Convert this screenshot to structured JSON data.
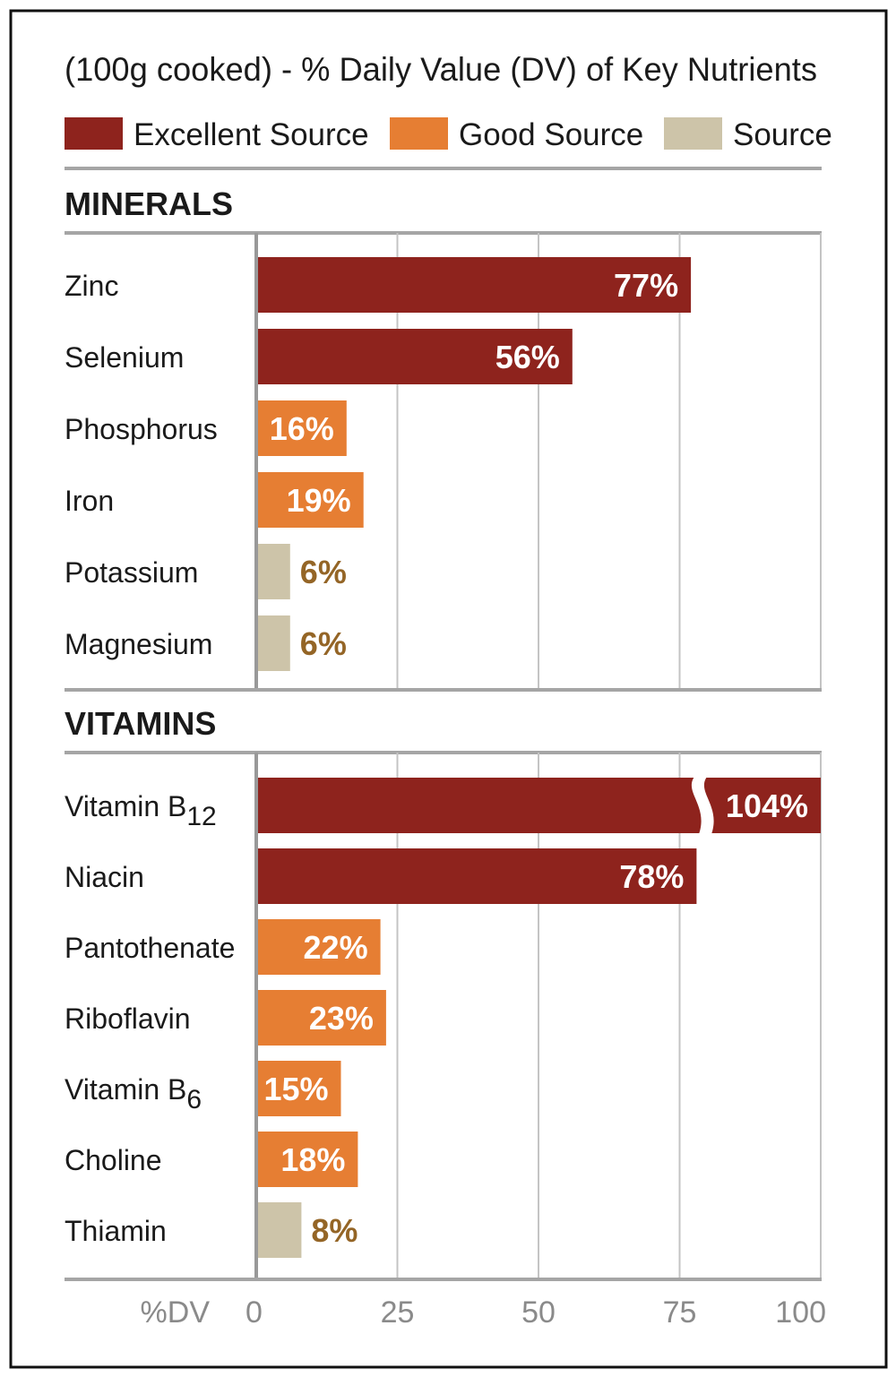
{
  "chart_data": {
    "type": "bar",
    "orientation": "horizontal",
    "title": "(100g cooked) - % Daily Value (DV) of Key Nutrients",
    "xlabel": "%DV",
    "xlim": [
      0,
      100
    ],
    "xticks": [
      "0",
      "25",
      "50",
      "75",
      "100"
    ],
    "grid": true,
    "legend_placement": "top",
    "legend": [
      {
        "key": "excellent",
        "label": "Excellent Source",
        "color": "#8E231D"
      },
      {
        "key": "good",
        "label": "Good Source",
        "color": "#E67E33"
      },
      {
        "key": "source",
        "label": "Source",
        "color": "#CDC4A9"
      }
    ],
    "source_value_color": "#946526",
    "sections": [
      {
        "name": "MINERALS",
        "items": [
          {
            "label": "Zinc",
            "sub": "",
            "value": 77,
            "display": "77%",
            "category": "excellent"
          },
          {
            "label": "Selenium",
            "sub": "",
            "value": 56,
            "display": "56%",
            "category": "excellent"
          },
          {
            "label": "Phosphorus",
            "sub": "",
            "value": 16,
            "display": "16%",
            "category": "good"
          },
          {
            "label": "Iron",
            "sub": "",
            "value": 19,
            "display": "19%",
            "category": "good"
          },
          {
            "label": "Potassium",
            "sub": "",
            "value": 6,
            "display": "6%",
            "category": "source"
          },
          {
            "label": "Magnesium",
            "sub": "",
            "value": 6,
            "display": "6%",
            "category": "source"
          }
        ]
      },
      {
        "name": "VITAMINS",
        "items": [
          {
            "label": "Vitamin B",
            "sub": "12",
            "value": 104,
            "display": "104%",
            "category": "excellent",
            "axis_break": true
          },
          {
            "label": "Niacin",
            "sub": "",
            "value": 78,
            "display": "78%",
            "category": "excellent"
          },
          {
            "label": "Pantothenate",
            "sub": "",
            "value": 22,
            "display": "22%",
            "category": "good"
          },
          {
            "label": "Riboflavin",
            "sub": "",
            "value": 23,
            "display": "23%",
            "category": "good"
          },
          {
            "label": "Vitamin B",
            "sub": "6",
            "value": 15,
            "display": "15%",
            "category": "good"
          },
          {
            "label": "Choline",
            "sub": "",
            "value": 18,
            "display": "18%",
            "category": "good"
          },
          {
            "label": "Thiamin",
            "sub": "",
            "value": 8,
            "display": "8%",
            "category": "source"
          }
        ]
      }
    ]
  }
}
